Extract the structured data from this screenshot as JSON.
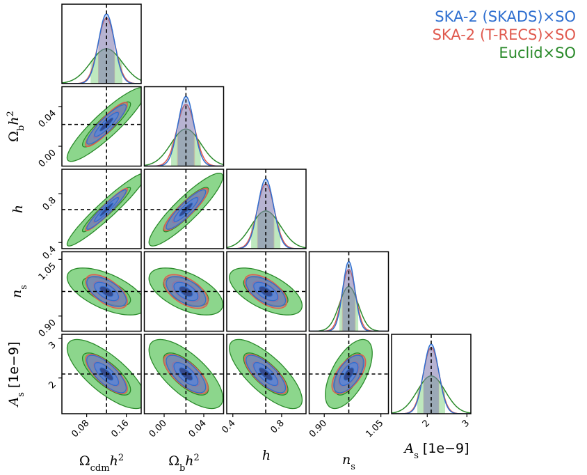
{
  "chart_data": {
    "type": "corner",
    "parameters": [
      {
        "name": "omega_cdm",
        "label": "Ωcdm h²",
        "fiducial": 0.12,
        "range": [
          0.03,
          0.19
        ],
        "ticks": [
          "0.08",
          "0.16"
        ],
        "tick_values": [
          0.08,
          0.16
        ]
      },
      {
        "name": "omega_b",
        "label": "Ωb h²",
        "fiducial": 0.022,
        "range": [
          -0.02,
          0.06
        ],
        "ticks": [
          "0.00",
          "0.04"
        ],
        "tick_values": [
          0.0,
          0.04
        ]
      },
      {
        "name": "h",
        "label": "h",
        "fiducial": 0.67,
        "range": [
          0.35,
          1.0
        ],
        "ticks": [
          "0.4",
          "0.8"
        ],
        "tick_values": [
          0.4,
          0.8
        ]
      },
      {
        "name": "n_s",
        "label": "ns",
        "fiducial": 0.965,
        "range": [
          0.86,
          1.07
        ],
        "ticks": [
          "0.90",
          "1.05"
        ],
        "tick_values": [
          0.9,
          1.05
        ]
      },
      {
        "name": "A_s",
        "label": "As [1e−9]",
        "fiducial": 2.1,
        "range": [
          1.1,
          3.1
        ],
        "ticks": [
          "2",
          "3"
        ],
        "tick_values": [
          2,
          3
        ]
      }
    ],
    "series": [
      {
        "name": "Euclid×SO",
        "color": "#2a8a2a",
        "fill": "#6fcc6f",
        "sigma": [
          0.032,
          0.015,
          0.12,
          0.025,
          0.35
        ],
        "rho": [
          [
            1,
            0.9,
            0.95,
            -0.6,
            -0.75
          ],
          [
            0.9,
            1,
            0.9,
            -0.55,
            -0.7
          ],
          [
            0.95,
            0.9,
            1,
            -0.6,
            -0.75
          ],
          [
            -0.6,
            -0.55,
            -0.6,
            1,
            0.6
          ],
          [
            -0.75,
            -0.7,
            -0.75,
            0.6,
            1
          ]
        ]
      },
      {
        "name": "SKA-2 (T-RECS)×SO",
        "color": "#e05a4f",
        "fill": "#c46a78",
        "sigma": [
          0.017,
          0.009,
          0.07,
          0.018,
          0.2
        ],
        "rho": [
          [
            1,
            0.9,
            0.95,
            -0.6,
            -0.75
          ],
          [
            0.9,
            1,
            0.9,
            -0.55,
            -0.7
          ],
          [
            0.95,
            0.9,
            1,
            -0.6,
            -0.75
          ],
          [
            -0.6,
            -0.55,
            -0.6,
            1,
            0.6
          ],
          [
            -0.75,
            -0.7,
            -0.75,
            0.6,
            1
          ]
        ]
      },
      {
        "name": "SKA-2 (SKADS)×SO",
        "color": "#2f6fd0",
        "fill": "#5a86d6",
        "sigma": [
          0.016,
          0.008,
          0.065,
          0.016,
          0.19
        ],
        "rho": [
          [
            1,
            0.9,
            0.95,
            -0.6,
            -0.75
          ],
          [
            0.9,
            1,
            0.9,
            -0.55,
            -0.7
          ],
          [
            0.95,
            0.9,
            1,
            -0.6,
            -0.75
          ],
          [
            -0.6,
            -0.55,
            -0.6,
            1,
            0.6
          ],
          [
            -0.75,
            -0.7,
            -0.75,
            0.6,
            1
          ]
        ]
      }
    ],
    "legend": [
      "SKA-2 (SKADS)×SO",
      "SKA-2 (T-RECS)×SO",
      "Euclid×SO"
    ],
    "legend_position": "top-right",
    "grid": false
  },
  "labels": {
    "omega_cdm_main": "Ω",
    "omega_cdm_sub": "cdm",
    "omega_cdm_rest": "h",
    "omega_cdm_sup": "2",
    "omega_b_main": "Ω",
    "omega_b_sub": "b",
    "omega_b_rest": "h",
    "omega_b_sup": "2",
    "h": "h",
    "ns_main": "n",
    "ns_sub": "s",
    "as_main": "A",
    "as_sub": "s",
    "as_unit": "[1e−9]"
  }
}
